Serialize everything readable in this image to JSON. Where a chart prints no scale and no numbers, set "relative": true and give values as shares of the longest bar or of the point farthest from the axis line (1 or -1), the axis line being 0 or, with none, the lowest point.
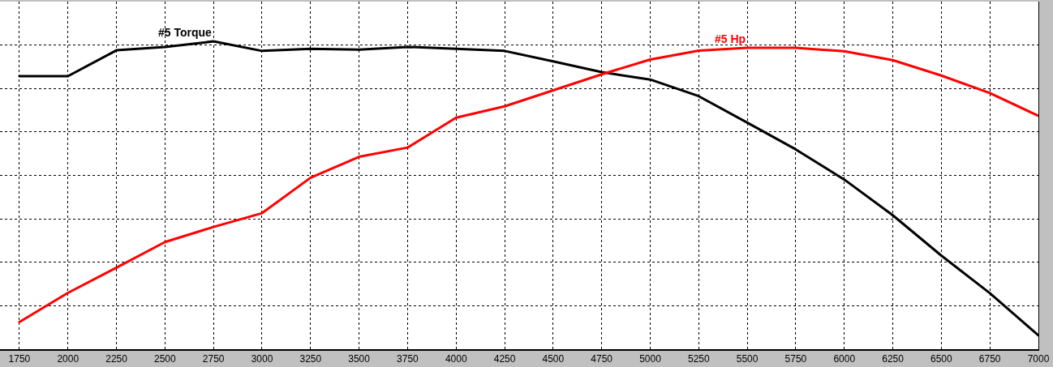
{
  "chart_data": {
    "type": "line",
    "relative": true,
    "grid": true,
    "legend": false,
    "marker": "none",
    "line_style": "solid",
    "tick_labels": "x",
    "x": [
      1750,
      2000,
      2250,
      2500,
      2750,
      3000,
      3250,
      3500,
      3750,
      4000,
      4250,
      4500,
      4750,
      5000,
      5250,
      5500,
      5750,
      6000,
      6250,
      6500,
      6750,
      7000
    ],
    "xlim": [
      1650,
      7000
    ],
    "xticks": [
      1750,
      2000,
      2250,
      2500,
      2750,
      3000,
      3250,
      3500,
      3750,
      4000,
      4250,
      4500,
      4750,
      5000,
      5250,
      5500,
      5750,
      6000,
      6250,
      6500,
      6750,
      7000
    ],
    "series": [
      {
        "name": "#5 Torque",
        "color": "#000000",
        "values": [
          0.887,
          0.887,
          0.971,
          0.982,
          1,
          0.969,
          0.976,
          0.973,
          0.982,
          0.976,
          0.969,
          0.935,
          0.9,
          0.876,
          0.822,
          0.736,
          0.649,
          0.551,
          0.435,
          0.304,
          0.182,
          0.045
        ]
      },
      {
        "name": "#5 Hp",
        "color": "#ff0000",
        "values": [
          0.088,
          0.183,
          0.265,
          0.348,
          0.397,
          0.442,
          0.557,
          0.625,
          0.655,
          0.752,
          0.789,
          0.841,
          0.893,
          0.941,
          0.97,
          0.979,
          0.979,
          0.968,
          0.939,
          0.889,
          0.832,
          0.758
        ]
      }
    ]
  }
}
